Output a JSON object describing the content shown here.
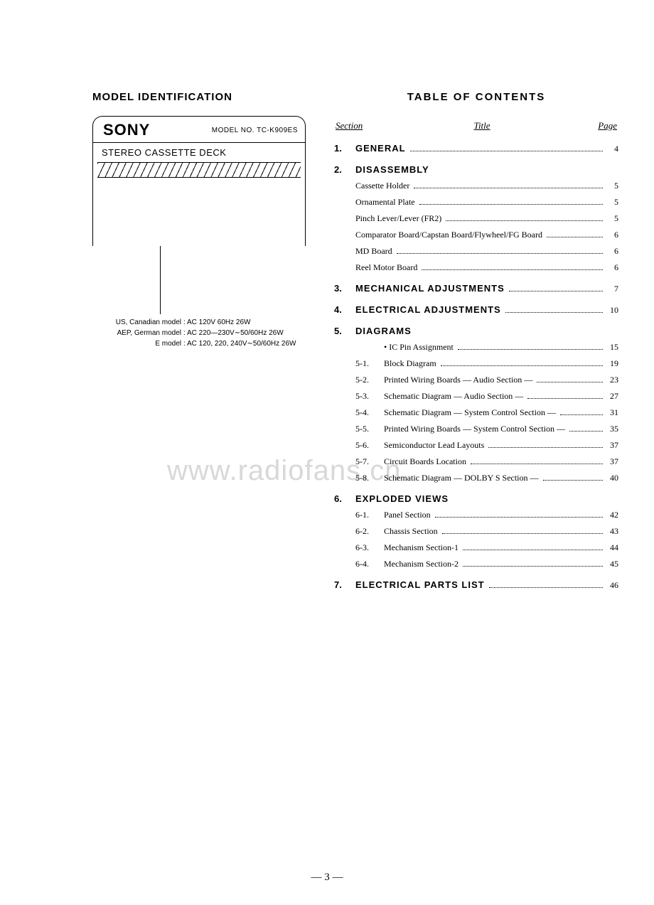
{
  "headings": {
    "model_id": "MODEL IDENTIFICATION",
    "toc": "TABLE OF CONTENTS"
  },
  "model_box": {
    "brand": "SONY",
    "model_no_label": "MODEL NO. TC-K909ES",
    "deck_label": "STEREO CASSETTE DECK"
  },
  "specs": [
    {
      "region": "US, Canadian model",
      "value": ": AC  120V  60Hz  26W"
    },
    {
      "region": "AEP, German model",
      "value": ": AC  220—230V∼50/60Hz  26W"
    },
    {
      "region": "E model",
      "value": ": AC  120, 220, 240V∼50/60Hz  26W"
    }
  ],
  "toc_header": {
    "section": "Section",
    "title": "Title",
    "page": "Page"
  },
  "toc": [
    {
      "num": "1.",
      "title": "GENERAL",
      "page": "4",
      "items": []
    },
    {
      "num": "2.",
      "title": "DISASSEMBLY",
      "page": "",
      "items": [
        {
          "sub": "",
          "title": "Cassette Holder",
          "page": "5"
        },
        {
          "sub": "",
          "title": "Ornamental Plate",
          "page": "5"
        },
        {
          "sub": "",
          "title": "Pinch Lever/Lever (FR2)",
          "page": "5"
        },
        {
          "sub": "",
          "title": "Comparator Board/Capstan Board/Flywheel/FG Board",
          "page": "6"
        },
        {
          "sub": "",
          "title": "MD Board",
          "page": "6"
        },
        {
          "sub": "",
          "title": "Reel Motor Board",
          "page": "6"
        }
      ]
    },
    {
      "num": "3.",
      "title": "MECHANICAL ADJUSTMENTS",
      "page": "7",
      "items": []
    },
    {
      "num": "4.",
      "title": "ELECTRICAL ADJUSTMENTS",
      "page": "10",
      "items": []
    },
    {
      "num": "5.",
      "title": "DIAGRAMS",
      "page": "",
      "items": [
        {
          "sub": "",
          "title": "• IC Pin Assignment",
          "page": "15"
        },
        {
          "sub": "5-1.",
          "title": "Block Diagram",
          "page": "19"
        },
        {
          "sub": "5-2.",
          "title": "Printed Wiring Boards — Audio Section —",
          "page": "23"
        },
        {
          "sub": "5-3.",
          "title": "Schematic Diagram — Audio Section —",
          "page": "27"
        },
        {
          "sub": "5-4.",
          "title": "Schematic Diagram — System Control Section —",
          "page": "31"
        },
        {
          "sub": "5-5.",
          "title": "Printed Wiring Boards — System Control Section —",
          "page": "35"
        },
        {
          "sub": "5-6.",
          "title": "Semiconductor Lead Layouts",
          "page": "37"
        },
        {
          "sub": "5-7.",
          "title": "Circuit Boards Location",
          "page": "37"
        },
        {
          "sub": "5-8.",
          "title": "Schematic Diagram — DOLBY S Section —",
          "page": "40"
        }
      ]
    },
    {
      "num": "6.",
      "title": "EXPLODED VIEWS",
      "page": "",
      "items": [
        {
          "sub": "6-1.",
          "title": "Panel Section",
          "page": "42"
        },
        {
          "sub": "6-2.",
          "title": "Chassis Section",
          "page": "43"
        },
        {
          "sub": "6-3.",
          "title": "Mechanism Section-1",
          "page": "44"
        },
        {
          "sub": "6-4.",
          "title": "Mechanism Section-2",
          "page": "45"
        }
      ]
    },
    {
      "num": "7.",
      "title": "ELECTRICAL PARTS LIST",
      "page": "46",
      "items": []
    }
  ],
  "watermark": "www.radiofans.cn",
  "page_number": "— 3 —"
}
